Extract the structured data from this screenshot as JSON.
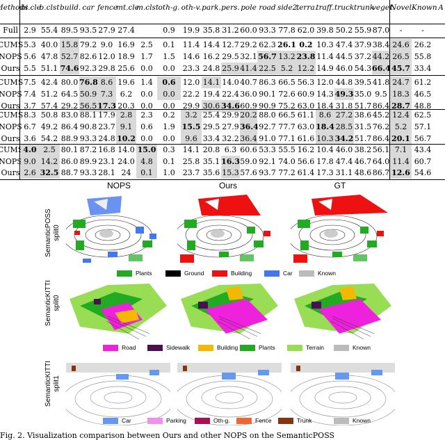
{
  "table": {
    "columns": [
      "Methods",
      "bi.cle",
      "b.clst",
      "build.",
      "car",
      "fence",
      "mt.cle",
      "m.clst",
      "oth-g.",
      "oth-v.",
      "park.",
      "pers.",
      "pole",
      "road",
      "side2.",
      "terra.",
      "traff.",
      "truck",
      "trunk",
      "veget.",
      "Novel",
      "Known",
      "A"
    ],
    "rows": [
      {
        "cells": [
          "Full",
          "2.9",
          "55.4",
          "89.5",
          "93.5",
          "27.9",
          "27.4",
          "",
          "0.9",
          "19.9",
          "35.8",
          "31.2",
          "60.0",
          "93.3",
          "77.8",
          "62.0",
          "39.8",
          "50.2",
          "55.9",
          "87.0",
          "-",
          "-",
          ""
        ]
      },
      {
        "cells": [
          "CUMS",
          "5.3",
          "40.0",
          "15.8",
          "79.2",
          "9.0",
          "16.9",
          "2.5",
          "0.1",
          "11.4",
          "14.4",
          "12.7",
          "29.2",
          "62.3",
          "26.1",
          "0.2",
          "10.3",
          "47.4",
          "37.9",
          "38.4",
          "24.6",
          "26.2",
          ""
        ],
        "shade": [
          3,
          20
        ],
        "bold": [
          14,
          15
        ]
      },
      {
        "cells": [
          "NOPS",
          "5.6",
          "47.8",
          "52.7",
          "82.6",
          "12.0",
          "18.9",
          "1.7",
          "1.5",
          "14.6",
          "16.2",
          "29.5",
          "32.1",
          "56.7",
          "13.2",
          "23.8",
          "11.4",
          "44.5",
          "37.2",
          "44.2",
          "26.5",
          "55.8",
          ""
        ],
        "shade": [
          3,
          13,
          14,
          15,
          19,
          20
        ],
        "bold": [
          13,
          15
        ]
      },
      {
        "cells": [
          "Ours",
          "5.5",
          "51.1",
          "74.6",
          "92.3",
          "29.8",
          "25.6",
          "0.0",
          "0.0",
          "23.3",
          "24.8",
          "25.9",
          "41.4",
          "22.5",
          "5.2",
          "12.2",
          "14.9",
          "46.0",
          "54.3",
          "66.4",
          "45.7",
          "33.4",
          ""
        ],
        "shade": [
          3,
          11,
          12,
          13,
          14,
          15,
          19,
          20
        ],
        "bold": [
          3,
          19,
          20
        ]
      },
      {
        "cells": [
          "CUMS",
          "7.5",
          "42.4",
          "80.0",
          "76.8",
          "8.6",
          "19.6",
          "1.4",
          "0.6",
          "12.0",
          "14.1",
          "14.0",
          "40.7",
          "86.3",
          "66.5",
          "56.3",
          "12.0",
          "44.8",
          "39.5",
          "41.8",
          "24.7",
          "61.2",
          ""
        ],
        "shade": [
          4,
          5,
          8,
          10,
          20
        ],
        "bold": [
          4,
          8
        ]
      },
      {
        "cells": [
          "NOPS",
          "7.4",
          "51.2",
          "64.5",
          "50.9",
          "7.3",
          "6.2",
          "0.0",
          "0.0",
          "22.2",
          "19.4",
          "22.4",
          "36.0",
          "90.1",
          "72.6",
          "60.9",
          "14.3",
          "49.3",
          "35.0",
          "9.5",
          "18.3",
          "46.5",
          ""
        ],
        "shade": [
          4,
          5,
          8,
          17,
          20
        ],
        "bold": [
          17
        ]
      },
      {
        "cells": [
          "Ours",
          "3.7",
          "57.4",
          "29.2",
          "56.5",
          "17.3",
          "20.3",
          "0.0",
          "0.0",
          "29.9",
          "30.6",
          "34.6",
          "60.9",
          "90.9",
          "75.2",
          "63.0",
          "18.4",
          "31.8",
          "51.7",
          "86.4",
          "28.7",
          "48.8",
          ""
        ],
        "shade": [
          4,
          5,
          10,
          11,
          20
        ],
        "bold": [
          5,
          11,
          20
        ]
      },
      {
        "cells": [
          "CUMS",
          "8.3",
          "50.8",
          "83.0",
          "88.1",
          "17.9",
          "2.8",
          "2.3",
          "0.2",
          "3.2",
          "25.4",
          "29.9",
          "20.2",
          "88.0",
          "66.5",
          "61.1",
          "8.6",
          "27.2",
          "38.6",
          "45.2",
          "12.4",
          "62.5",
          ""
        ],
        "shade": [
          6,
          9,
          12,
          16,
          17,
          20
        ],
        "bold": []
      },
      {
        "cells": [
          "NOPS",
          "6.7",
          "49.2",
          "86.4",
          "90.8",
          "23.7",
          "9.1",
          "0.6",
          "1.9",
          "15.5",
          "29.5",
          "27.9",
          "36.4",
          "92.7",
          "77.7",
          "63.0",
          "18.4",
          "28.5",
          "31.5",
          "76.2",
          "5.2",
          "57.1",
          ""
        ],
        "shade": [
          6,
          9,
          12,
          16,
          17,
          20
        ],
        "bold": [
          9,
          12,
          16
        ]
      },
      {
        "cells": [
          "Ours",
          "3.6",
          "54.2",
          "88.9",
          "93.3",
          "24.8",
          "10.2",
          "0.0",
          "0.0",
          "9.6",
          "33.4",
          "32.2",
          "36.4",
          "91.0",
          "77.1",
          "61.6",
          "10.3",
          "34.2",
          "51.7",
          "86.4",
          "20.1",
          "56.7",
          ""
        ],
        "shade": [
          6,
          9,
          12,
          16,
          17,
          20
        ],
        "bold": [
          6,
          17,
          20
        ]
      },
      {
        "cells": [
          "CUMS",
          "4.0",
          "2.5",
          "80.1",
          "87.2",
          "16.8",
          "14.0",
          "15.0",
          "0.3",
          "14.1",
          "20.8",
          "6.3",
          "60.6",
          "53.3",
          "55.5",
          "16.2",
          "10.4",
          "46.0",
          "38.2",
          "56.1",
          "7.1",
          "43.4",
          ""
        ],
        "shade": [
          1,
          2,
          7,
          20
        ],
        "bold": [
          1,
          7
        ]
      },
      {
        "cells": [
          "NOPS",
          "9.0",
          "14.2",
          "86.0",
          "89.9",
          "23.1",
          "24.0",
          "4.8",
          "0.1",
          "25.8",
          "35.1",
          "16.3",
          "59.0",
          "92.1",
          "74.0",
          "56.6",
          "17.8",
          "47.4",
          "46.7",
          "64.0",
          "11.4",
          "60.7",
          ""
        ],
        "shade": [
          1,
          2,
          7,
          11,
          20
        ],
        "bold": [
          11
        ]
      },
      {
        "cells": [
          "Ours",
          "2.6",
          "32.5",
          "88.7",
          "93.3",
          "28.1",
          "24",
          "0.1",
          "1.0",
          "23.7",
          "35.6",
          "15.3",
          "57.6",
          "93.7",
          "77.2",
          "61.4",
          "17.3",
          "31.1",
          "48.6",
          "86.7",
          "12.6",
          "54.6",
          ""
        ],
        "shade": [
          1,
          2,
          7,
          11,
          20
        ],
        "bold": [
          2,
          20
        ]
      }
    ]
  },
  "figure": {
    "col_headers": [
      "NOPS",
      "Ours",
      "GT"
    ],
    "row_labels": [
      [
        "SemanticPOSS",
        "split0"
      ],
      [
        "SemanticKITTI",
        "split0"
      ],
      [
        "SemanticKITTI",
        "split1"
      ]
    ],
    "legends": [
      [
        {
          "label": "Plants",
          "color": "#22aa22"
        },
        {
          "label": "Ground",
          "color": "#000000"
        },
        {
          "label": "Building",
          "color": "#ee1111"
        },
        {
          "label": "Car",
          "color": "#4477ee"
        },
        {
          "label": "Known",
          "color": "#bbbbbb"
        }
      ],
      [
        {
          "label": "Road",
          "color": "#ee22dd"
        },
        {
          "label": "Sidewalk",
          "color": "#4a1050"
        },
        {
          "label": "Building",
          "color": "#f5b800"
        },
        {
          "label": "Plants",
          "color": "#22aa22"
        },
        {
          "label": "Terrain",
          "color": "#99dd55"
        },
        {
          "label": "Known",
          "color": "#bbbbbb"
        }
      ],
      [
        {
          "label": "Car",
          "color": "#6699ee"
        },
        {
          "label": "Parking",
          "color": "#f090f0"
        },
        {
          "label": "Oth-g.",
          "color": "#aa1155"
        },
        {
          "label": "Fence",
          "color": "#ee6633"
        },
        {
          "label": "Trunk",
          "color": "#883311"
        },
        {
          "label": "Known",
          "color": "#bbbbbb"
        }
      ]
    ],
    "caption": "Fig. 2. Visualization comparison between Ours and other NOPS on the SemanticPOSS"
  }
}
